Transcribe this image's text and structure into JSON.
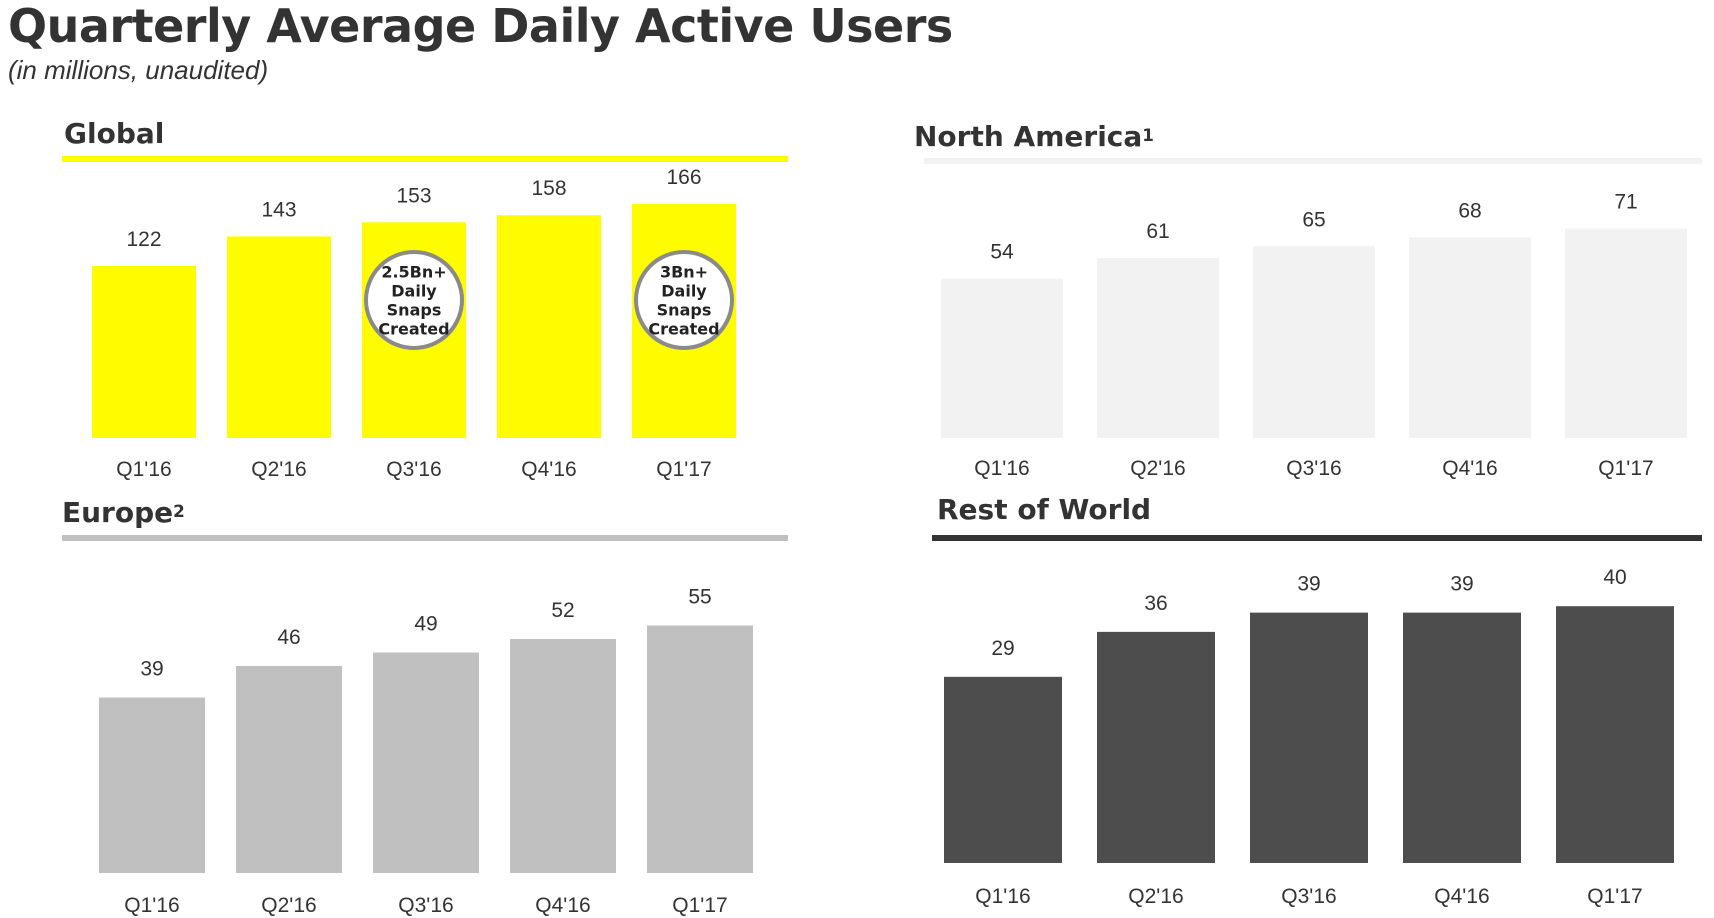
{
  "title": "Quarterly Average Daily Active Users",
  "subtitle": "(in millions, unaudited)",
  "chart_data": [
    {
      "type": "bar",
      "title": "Global",
      "title_sup": "",
      "categories": [
        "Q1'16",
        "Q2'16",
        "Q3'16",
        "Q4'16",
        "Q1'17"
      ],
      "values": [
        122,
        143,
        153,
        158,
        166
      ],
      "color": "#FFFC00",
      "rule_color": "#FFFC00",
      "annotations": [
        {
          "category": "Q3'16",
          "lines": [
            "2.5Bn+",
            "Daily",
            "Snaps",
            "Created"
          ]
        },
        {
          "category": "Q1'17",
          "lines": [
            "3Bn+",
            "Daily",
            "Snaps",
            "Created"
          ]
        }
      ]
    },
    {
      "type": "bar",
      "title": "North America",
      "title_sup": "1",
      "categories": [
        "Q1'16",
        "Q2'16",
        "Q3'16",
        "Q4'16",
        "Q1'17"
      ],
      "values": [
        54,
        61,
        65,
        68,
        71
      ],
      "color": "#F2F2F2",
      "rule_color": "#F2F2F2",
      "annotations": []
    },
    {
      "type": "bar",
      "title": "Europe",
      "title_sup": "2",
      "categories": [
        "Q1'16",
        "Q2'16",
        "Q3'16",
        "Q4'16",
        "Q1'17"
      ],
      "values": [
        39,
        46,
        49,
        52,
        55
      ],
      "color": "#C0C0C0",
      "rule_color": "#C0C0C0",
      "annotations": []
    },
    {
      "type": "bar",
      "title": "Rest of World",
      "title_sup": "",
      "categories": [
        "Q1'16",
        "Q2'16",
        "Q3'16",
        "Q4'16",
        "Q1'17"
      ],
      "values": [
        29,
        36,
        39,
        39,
        40
      ],
      "color": "#4D4D4D",
      "rule_color": "#333333",
      "annotations": []
    }
  ]
}
